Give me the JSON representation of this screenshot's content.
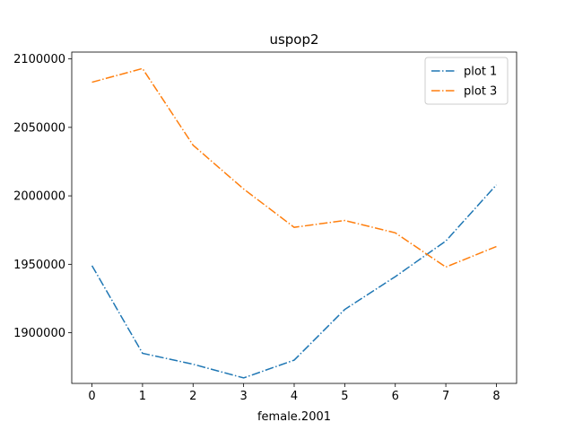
{
  "chart_data": {
    "type": "line",
    "title": "uspop2",
    "xlabel": "female.2001",
    "ylabel": "",
    "x": [
      0,
      1,
      2,
      3,
      4,
      5,
      6,
      7,
      8
    ],
    "xlim": [
      -0.4,
      8.4
    ],
    "ylim": [
      1863000,
      2105000
    ],
    "xticks": [
      0,
      1,
      2,
      3,
      4,
      5,
      6,
      7,
      8
    ],
    "xtick_labels": [
      "0",
      "1",
      "2",
      "3",
      "4",
      "5",
      "6",
      "7",
      "8"
    ],
    "yticks": [
      1900000,
      1950000,
      2000000,
      2050000,
      2100000
    ],
    "ytick_labels": [
      "1900000",
      "1950000",
      "2000000",
      "2050000",
      "2100000"
    ],
    "grid": false,
    "legend_position": "top-right",
    "line_style": "dashdot",
    "series": [
      {
        "name": "plot 1",
        "color": "#1f77b4",
        "values": [
          1949000,
          1885000,
          1877000,
          1867000,
          1880000,
          1917000,
          1941000,
          1967000,
          2008000
        ]
      },
      {
        "name": "plot 3",
        "color": "#ff7f0e",
        "values": [
          2083000,
          2093000,
          2037000,
          2005000,
          1977000,
          1982000,
          1973000,
          1948000,
          1963000
        ]
      }
    ]
  }
}
